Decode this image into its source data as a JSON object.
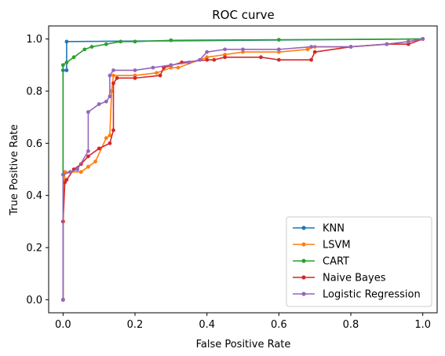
{
  "chart_data": {
    "type": "line",
    "title": "ROC curve",
    "xlabel": "False Positive Rate",
    "ylabel": "True Positive Rate",
    "xlim": [
      -0.04,
      1.04
    ],
    "ylim": [
      -0.05,
      1.05
    ],
    "xticks": [
      "0.0",
      "0.2",
      "0.4",
      "0.6",
      "0.8",
      "1.0"
    ],
    "yticks": [
      "0.0",
      "0.2",
      "0.4",
      "0.6",
      "0.8",
      "1.0"
    ],
    "grid": false,
    "legend_position": "lower right",
    "series": [
      {
        "name": "KNN",
        "color": "#1f77b4",
        "points": [
          [
            0,
            0
          ],
          [
            0,
            0.88
          ],
          [
            0.01,
            0.88
          ],
          [
            0.01,
            0.99
          ],
          [
            1,
            1
          ]
        ]
      },
      {
        "name": "LSVM",
        "color": "#ff7f0e",
        "points": [
          [
            0,
            0
          ],
          [
            0,
            0.3
          ],
          [
            0.005,
            0.49
          ],
          [
            0.02,
            0.49
          ],
          [
            0.05,
            0.49
          ],
          [
            0.07,
            0.51
          ],
          [
            0.09,
            0.53
          ],
          [
            0.12,
            0.62
          ],
          [
            0.13,
            0.63
          ],
          [
            0.135,
            0.8
          ],
          [
            0.14,
            0.86
          ],
          [
            0.2,
            0.86
          ],
          [
            0.26,
            0.87
          ],
          [
            0.3,
            0.89
          ],
          [
            0.32,
            0.89
          ],
          [
            0.4,
            0.93
          ],
          [
            0.45,
            0.94
          ],
          [
            0.5,
            0.95
          ],
          [
            0.6,
            0.95
          ],
          [
            0.68,
            0.96
          ],
          [
            0.7,
            0.97
          ],
          [
            0.8,
            0.97
          ],
          [
            0.9,
            0.98
          ],
          [
            0.96,
            0.99
          ],
          [
            1,
            1
          ]
        ]
      },
      {
        "name": "CART",
        "color": "#2ca02c",
        "points": [
          [
            0,
            0
          ],
          [
            0,
            0.9
          ],
          [
            0.01,
            0.91
          ],
          [
            0.03,
            0.93
          ],
          [
            0.06,
            0.96
          ],
          [
            0.08,
            0.97
          ],
          [
            0.12,
            0.98
          ],
          [
            0.16,
            0.99
          ],
          [
            0.2,
            0.99
          ],
          [
            0.3,
            0.995
          ],
          [
            0.6,
            0.997
          ],
          [
            1,
            1
          ]
        ]
      },
      {
        "name": "Naive Bayes",
        "color": "#d62728",
        "points": [
          [
            0,
            0
          ],
          [
            0,
            0.3
          ],
          [
            0.005,
            0.45
          ],
          [
            0.01,
            0.46
          ],
          [
            0.03,
            0.5
          ],
          [
            0.05,
            0.52
          ],
          [
            0.07,
            0.55
          ],
          [
            0.1,
            0.58
          ],
          [
            0.13,
            0.6
          ],
          [
            0.14,
            0.65
          ],
          [
            0.14,
            0.83
          ],
          [
            0.15,
            0.85
          ],
          [
            0.2,
            0.85
          ],
          [
            0.27,
            0.86
          ],
          [
            0.28,
            0.89
          ],
          [
            0.33,
            0.91
          ],
          [
            0.4,
            0.92
          ],
          [
            0.42,
            0.92
          ],
          [
            0.45,
            0.93
          ],
          [
            0.55,
            0.93
          ],
          [
            0.6,
            0.92
          ],
          [
            0.69,
            0.92
          ],
          [
            0.7,
            0.95
          ],
          [
            0.8,
            0.97
          ],
          [
            0.9,
            0.98
          ],
          [
            0.96,
            0.98
          ],
          [
            1,
            1
          ]
        ]
      },
      {
        "name": "Logistic Regression",
        "color": "#9467bd",
        "points": [
          [
            0,
            0
          ],
          [
            0,
            0.48
          ],
          [
            0.02,
            0.49
          ],
          [
            0.04,
            0.5
          ],
          [
            0.07,
            0.57
          ],
          [
            0.07,
            0.72
          ],
          [
            0.1,
            0.75
          ],
          [
            0.12,
            0.76
          ],
          [
            0.13,
            0.78
          ],
          [
            0.13,
            0.86
          ],
          [
            0.14,
            0.88
          ],
          [
            0.2,
            0.88
          ],
          [
            0.25,
            0.89
          ],
          [
            0.3,
            0.9
          ],
          [
            0.35,
            0.91
          ],
          [
            0.38,
            0.92
          ],
          [
            0.4,
            0.95
          ],
          [
            0.45,
            0.96
          ],
          [
            0.5,
            0.96
          ],
          [
            0.6,
            0.96
          ],
          [
            0.69,
            0.97
          ],
          [
            0.8,
            0.97
          ],
          [
            0.9,
            0.98
          ],
          [
            0.96,
            0.99
          ],
          [
            1,
            1
          ]
        ]
      }
    ]
  }
}
